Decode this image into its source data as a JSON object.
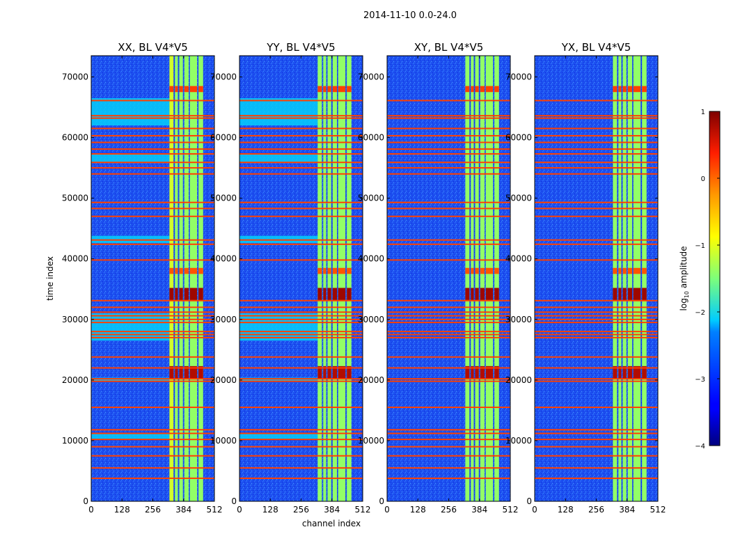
{
  "chart_data": {
    "type": "heatmap",
    "suptitle": "2014-11-10 0.0-24.0",
    "xlabel": "channel index",
    "ylabel": "time index",
    "xlim": [
      0,
      512
    ],
    "ylim": [
      0,
      73500
    ],
    "x_ticks": [
      0,
      128,
      256,
      384,
      512
    ],
    "y_ticks": [
      0,
      10000,
      20000,
      30000,
      40000,
      50000,
      60000,
      70000
    ],
    "colorbar": {
      "label": "log10 amplitude",
      "label_base": "log",
      "label_sub": "10",
      "label_rest": " amplitude",
      "min": -4,
      "max": 1,
      "ticks": [
        1,
        0,
        -1,
        -2,
        -3,
        -4
      ],
      "tick_labels": [
        "1",
        "0",
        "−1",
        "−2",
        "−3",
        "−4"
      ],
      "colormap": "jet"
    },
    "panels": [
      {
        "title": "XX, BL V4*V5",
        "polarization": "XX"
      },
      {
        "title": "YY, BL V4*V5",
        "polarization": "YY"
      },
      {
        "title": "XY, BL V4*V5",
        "polarization": "XY"
      },
      {
        "title": "YX, BL V4*V5",
        "polarization": "YX"
      }
    ],
    "background_level": -3.4,
    "rfi_bands": {
      "channel_ranges": [
        [
          325,
          342
        ],
        [
          348,
          360
        ],
        [
          366,
          381
        ],
        [
          387,
          405
        ],
        [
          410,
          440
        ],
        [
          446,
          465
        ]
      ],
      "level": -1.4
    },
    "flagged_rows": [
      3800,
      5500,
      7500,
      9000,
      10200,
      11200,
      11800,
      15500,
      19800,
      20200,
      22000,
      23800,
      27000,
      27500,
      28000,
      29500,
      30000,
      30600,
      31200,
      32000,
      33100,
      39800,
      42400,
      43100,
      47000,
      48300,
      49300,
      54000,
      55000,
      55900,
      57300,
      58100,
      59200,
      60300,
      61500,
      63200,
      63600,
      66100
    ],
    "flagged_level": 0.2,
    "bright_events": [
      {
        "t_range": [
          20200,
          22300
        ],
        "level": 0.75
      },
      {
        "t_range": [
          33200,
          35200
        ],
        "level": 0.85
      },
      {
        "t_range": [
          37500,
          38500
        ],
        "level": 0.1
      },
      {
        "t_range": [
          67500,
          68500
        ],
        "level": 0.2
      }
    ],
    "cyan_bands_xx_yy": [
      [
        10300,
        11200
      ],
      [
        19800,
        20400
      ],
      [
        26500,
        31000
      ],
      [
        42600,
        43800
      ],
      [
        55800,
        57200
      ],
      [
        62000,
        66500
      ]
    ]
  }
}
